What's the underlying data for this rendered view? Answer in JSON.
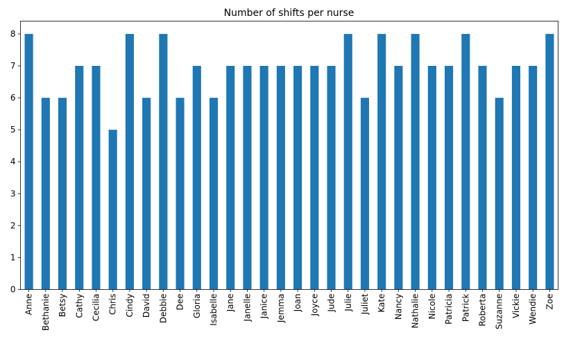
{
  "chart_data": {
    "type": "bar",
    "title": "Number of shifts per nurse",
    "xlabel": "",
    "ylabel": "",
    "categories": [
      "Anne",
      "Bethanie",
      "Betsy",
      "Cathy",
      "Cecilia",
      "Chris",
      "Cindy",
      "David",
      "Debbie",
      "Dee",
      "Gloria",
      "Isabelle",
      "Jane",
      "Janelle",
      "Janice",
      "Jemma",
      "Joan",
      "Joyce",
      "Jude",
      "Julie",
      "Juliet",
      "Kate",
      "Nancy",
      "Nathalie",
      "Nicole",
      "Patricia",
      "Patrick",
      "Roberta",
      "Suzanne",
      "Vickie",
      "Wendie",
      "Zoe"
    ],
    "values": [
      8,
      6,
      6,
      7,
      7,
      5,
      8,
      6,
      8,
      6,
      7,
      6,
      7,
      7,
      7,
      7,
      7,
      7,
      7,
      8,
      6,
      8,
      7,
      8,
      7,
      7,
      8,
      7,
      6,
      7,
      7,
      8
    ],
    "ylim": [
      0,
      8.4
    ],
    "yticks": [
      0,
      1,
      2,
      3,
      4,
      5,
      6,
      7,
      8
    ],
    "bar_color": "#1f77b4",
    "grid": false,
    "legend": "none"
  }
}
